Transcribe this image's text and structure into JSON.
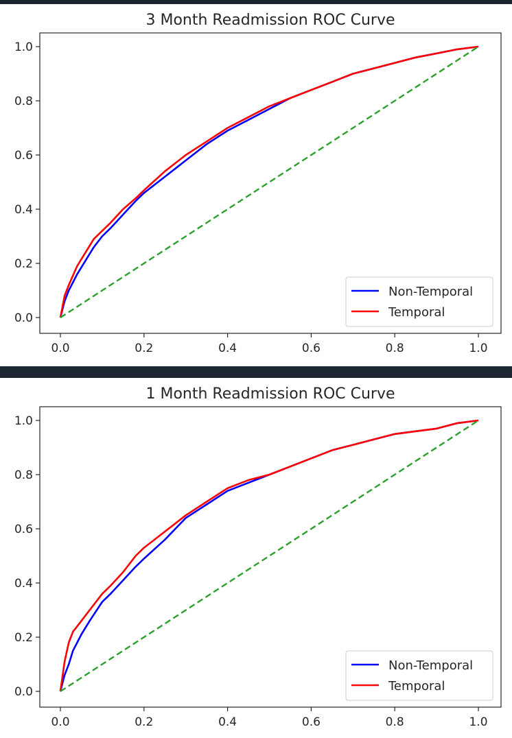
{
  "chart_data": [
    {
      "type": "line",
      "title": "3 Month Readmission ROC Curve",
      "xlabel": "",
      "ylabel": "",
      "xlim": [
        0.0,
        1.0
      ],
      "ylim": [
        0.0,
        1.0
      ],
      "xticks": [
        "0.0",
        "0.2",
        "0.4",
        "0.6",
        "0.8",
        "1.0"
      ],
      "yticks": [
        "0.0",
        "0.2",
        "0.4",
        "0.6",
        "0.8",
        "1.0"
      ],
      "grid": false,
      "legend_position": "lower-right",
      "series": [
        {
          "name": "Non-Temporal",
          "color": "#0000ff",
          "style": "solid",
          "x": [
            0,
            0.01,
            0.02,
            0.04,
            0.06,
            0.08,
            0.1,
            0.12,
            0.15,
            0.18,
            0.2,
            0.25,
            0.3,
            0.35,
            0.4,
            0.45,
            0.5,
            0.55,
            0.6,
            0.65,
            0.7,
            0.75,
            0.8,
            0.85,
            0.9,
            0.95,
            1.0
          ],
          "y": [
            0,
            0.06,
            0.1,
            0.16,
            0.21,
            0.26,
            0.3,
            0.33,
            0.38,
            0.43,
            0.46,
            0.52,
            0.58,
            0.64,
            0.69,
            0.73,
            0.77,
            0.81,
            0.84,
            0.87,
            0.9,
            0.92,
            0.94,
            0.96,
            0.975,
            0.99,
            1.0
          ]
        },
        {
          "name": "Temporal",
          "color": "#ff0000",
          "style": "solid",
          "x": [
            0,
            0.01,
            0.02,
            0.04,
            0.06,
            0.08,
            0.1,
            0.12,
            0.15,
            0.18,
            0.2,
            0.25,
            0.3,
            0.35,
            0.4,
            0.45,
            0.5,
            0.55,
            0.6,
            0.65,
            0.7,
            0.75,
            0.8,
            0.85,
            0.9,
            0.95,
            1.0
          ],
          "y": [
            0,
            0.08,
            0.12,
            0.19,
            0.24,
            0.29,
            0.32,
            0.35,
            0.4,
            0.44,
            0.47,
            0.54,
            0.6,
            0.65,
            0.7,
            0.74,
            0.78,
            0.81,
            0.84,
            0.87,
            0.9,
            0.92,
            0.94,
            0.96,
            0.975,
            0.99,
            1.0
          ]
        },
        {
          "color": "#2ca02c",
          "style": "dashed",
          "x": [
            0,
            1.0
          ],
          "y": [
            0,
            1.0
          ]
        }
      ]
    },
    {
      "type": "line",
      "title": "1 Month Readmission ROC Curve",
      "xlabel": "",
      "ylabel": "",
      "xlim": [
        0.0,
        1.0
      ],
      "ylim": [
        0.0,
        1.0
      ],
      "xticks": [
        "0.0",
        "0.2",
        "0.4",
        "0.6",
        "0.8",
        "1.0"
      ],
      "yticks": [
        "0.0",
        "0.2",
        "0.4",
        "0.6",
        "0.8",
        "1.0"
      ],
      "grid": false,
      "legend_position": "lower-right",
      "series": [
        {
          "name": "Non-Temporal",
          "color": "#0000ff",
          "style": "solid",
          "x": [
            0,
            0.01,
            0.02,
            0.03,
            0.05,
            0.07,
            0.1,
            0.12,
            0.15,
            0.18,
            0.2,
            0.25,
            0.3,
            0.35,
            0.4,
            0.45,
            0.5,
            0.55,
            0.6,
            0.65,
            0.7,
            0.75,
            0.8,
            0.85,
            0.9,
            0.95,
            1.0
          ],
          "y": [
            0,
            0.06,
            0.1,
            0.15,
            0.21,
            0.26,
            0.33,
            0.36,
            0.41,
            0.46,
            0.49,
            0.56,
            0.64,
            0.69,
            0.74,
            0.77,
            0.8,
            0.83,
            0.86,
            0.89,
            0.91,
            0.93,
            0.95,
            0.96,
            0.97,
            0.99,
            1.0
          ]
        },
        {
          "name": "Temporal",
          "color": "#ff0000",
          "style": "solid",
          "x": [
            0,
            0.01,
            0.02,
            0.03,
            0.05,
            0.07,
            0.1,
            0.12,
            0.15,
            0.18,
            0.2,
            0.25,
            0.3,
            0.35,
            0.4,
            0.45,
            0.5,
            0.55,
            0.6,
            0.65,
            0.7,
            0.75,
            0.8,
            0.85,
            0.9,
            0.95,
            1.0
          ],
          "y": [
            0,
            0.11,
            0.18,
            0.22,
            0.26,
            0.3,
            0.36,
            0.39,
            0.44,
            0.5,
            0.53,
            0.59,
            0.65,
            0.7,
            0.75,
            0.78,
            0.8,
            0.83,
            0.86,
            0.89,
            0.91,
            0.93,
            0.95,
            0.96,
            0.97,
            0.99,
            1.0
          ]
        },
        {
          "color": "#2ca02c",
          "style": "dashed",
          "x": [
            0,
            1.0
          ],
          "y": [
            0,
            1.0
          ]
        }
      ]
    }
  ]
}
